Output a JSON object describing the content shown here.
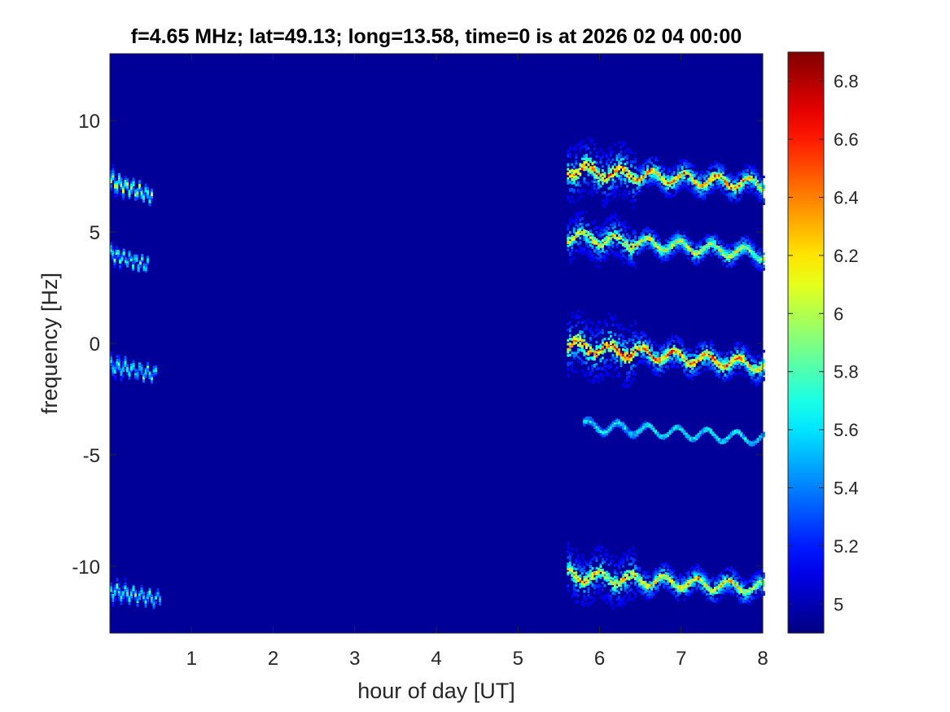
{
  "chart_data": {
    "type": "heatmap",
    "title": "f=4.65 MHz;  lat=49.13; long=13.58, time=0 is at 2026 02 04 00:00",
    "xlabel": "hour of day [UT]",
    "ylabel": "frequency [Hz]",
    "xlim": [
      0,
      8
    ],
    "ylim": [
      -13,
      13
    ],
    "xticks": [
      1,
      2,
      3,
      4,
      5,
      6,
      7,
      8
    ],
    "yticks": [
      -10,
      -5,
      0,
      5,
      10
    ],
    "colorbar": {
      "colormap": "jet",
      "clim": [
        4.9,
        6.9
      ],
      "ticks": [
        "5",
        "5.2",
        "5.4",
        "5.6",
        "5.8",
        "6",
        "6.2",
        "6.4",
        "6.6",
        "6.8"
      ]
    },
    "background_value": 4.95,
    "features": [
      {
        "name": "trace",
        "x_start": 0.0,
        "x_end": 0.5,
        "y_start": 7.3,
        "y_end": 6.6,
        "peak": 6.3,
        "spread": 0.5
      },
      {
        "name": "trace",
        "x_start": 0.0,
        "x_end": 0.45,
        "y_start": 4.0,
        "y_end": 3.5,
        "peak": 6.0,
        "spread": 0.3
      },
      {
        "name": "trace",
        "x_start": 0.0,
        "x_end": 0.55,
        "y_start": -1.0,
        "y_end": -1.4,
        "peak": 6.0,
        "spread": 0.4
      },
      {
        "name": "trace",
        "x_start": 0.0,
        "x_end": 0.6,
        "y_start": -11.1,
        "y_end": -11.5,
        "peak": 6.0,
        "spread": 0.4
      },
      {
        "name": "trace",
        "x_start": 5.6,
        "x_end": 8.0,
        "y_start": 7.8,
        "y_end": 7.1,
        "peak": 6.8,
        "spread": 1.3
      },
      {
        "name": "trace",
        "x_start": 5.6,
        "x_end": 8.0,
        "y_start": 4.8,
        "y_end": 4.0,
        "peak": 6.5,
        "spread": 1.0
      },
      {
        "name": "trace",
        "x_start": 5.6,
        "x_end": 8.0,
        "y_start": -0.1,
        "y_end": -1.0,
        "peak": 6.9,
        "spread": 1.4
      },
      {
        "name": "trace",
        "x_start": 5.8,
        "x_end": 8.0,
        "y_start": -3.7,
        "y_end": -4.3,
        "peak": 5.9,
        "spread": 0.15
      },
      {
        "name": "trace",
        "x_start": 5.6,
        "x_end": 8.0,
        "y_start": -10.4,
        "y_end": -11.0,
        "peak": 6.6,
        "spread": 1.2
      }
    ]
  }
}
